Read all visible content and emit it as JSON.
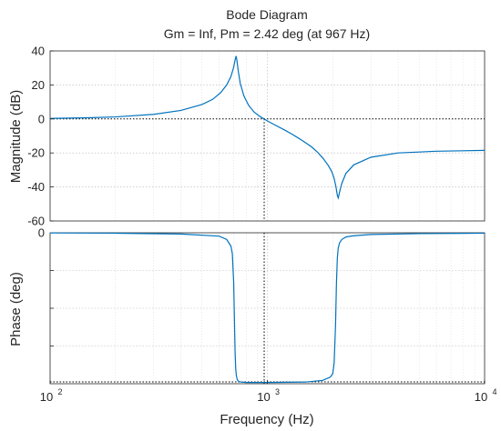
{
  "chart_data": {
    "type": "line",
    "title": "Bode Diagram",
    "subtitle": "Gm = Inf,  Pm = 2.42 deg (at 967 Hz)",
    "xlabel": "Frequency  (Hz)",
    "x_scale": "log",
    "xlim": [
      100,
      10000
    ],
    "x_ticks": [
      100,
      1000,
      10000
    ],
    "x_tick_labels": [
      "10",
      "10",
      "10"
    ],
    "x_tick_exponents": [
      "2",
      "3",
      "4"
    ],
    "grid": true,
    "crossover_frequency_hz": 967,
    "panels": [
      {
        "ylabel": "Magnitude (dB)",
        "ylim": [
          -60,
          40
        ],
        "y_ticks": [
          40,
          20,
          0,
          -20,
          -40,
          -60
        ],
        "y_tick_labels": [
          "40",
          "20",
          "0",
          "-20",
          "-40",
          "-60"
        ],
        "series": [
          {
            "color": "#0072bd",
            "x": [
              100,
              150,
              200,
              300,
              400,
              500,
              560,
              610,
              650,
              680,
              700,
              710,
              718,
              725,
              735,
              750,
              780,
              820,
              870,
              930,
              967,
              1000,
              1100,
              1200,
              1300,
              1400,
              1500,
              1600,
              1700,
              1800,
              1900,
              1980,
              2030,
              2070,
              2100,
              2120,
              2150,
              2200,
              2300,
              2500,
              3000,
              4000,
              6000,
              10000
            ],
            "y": [
              0.3,
              0.7,
              1.2,
              2.7,
              5.0,
              8.5,
              11.5,
              15.5,
              20.0,
              25.0,
              30.5,
              34.5,
              37.0,
              34.0,
              28.0,
              21.0,
              13.5,
              8.0,
              4.0,
              1.2,
              0.0,
              -1.2,
              -4.0,
              -6.5,
              -9.0,
              -11.5,
              -14.0,
              -16.5,
              -19.5,
              -23.0,
              -27.0,
              -31.0,
              -35.0,
              -40.0,
              -45.0,
              -46.5,
              -43.0,
              -38.0,
              -32.0,
              -27.0,
              -22.5,
              -20.0,
              -19.0,
              -18.5
            ]
          }
        ]
      },
      {
        "ylabel": "Phase (deg)",
        "ylim": [
          -180,
          0
        ],
        "y_ticks": [
          0
        ],
        "y_tick_labels": [
          "0"
        ],
        "series": [
          {
            "color": "#0072bd",
            "x": [
              100,
              200,
              400,
              600,
              650,
              680,
              690,
              700,
              705,
              710,
              715,
              720,
              725,
              730,
              740,
              760,
              800,
              1000,
              1500,
              1800,
              1950,
              2000,
              2030,
              2060,
              2080,
              2100,
              2120,
              2150,
              2200,
              2300,
              2500,
              3000,
              5000,
              10000
            ],
            "y": [
              -0.2,
              -0.5,
              -1.5,
              -4,
              -8,
              -16,
              -25,
              -60,
              -100,
              -140,
              -162,
              -170,
              -174,
              -176,
              -177.5,
              -178,
              -178.5,
              -178.5,
              -178,
              -176,
              -172,
              -168,
              -155,
              -110,
              -60,
              -30,
              -18,
              -12,
              -8,
              -5,
              -3.5,
              -2,
              -1,
              -0.5
            ]
          }
        ]
      }
    ]
  }
}
